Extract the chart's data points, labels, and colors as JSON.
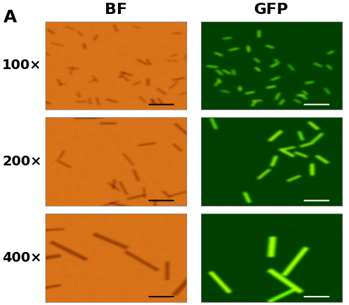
{
  "panel_label": "A",
  "col_labels": [
    "BF",
    "GFP"
  ],
  "row_labels": [
    "100×",
    "200×",
    "400×"
  ],
  "bf_base_color": [
    0.85,
    0.45,
    0.1
  ],
  "gfp_bg_color": [
    0.0,
    0.25,
    0.0
  ],
  "gfp_cell_color": [
    0.2,
    0.95,
    0.1
  ],
  "figure_bg": "#ffffff",
  "label_fontsize": 14,
  "col_label_fontsize": 16,
  "panel_label_fontsize": 18,
  "scale_bar_color": "#000000"
}
